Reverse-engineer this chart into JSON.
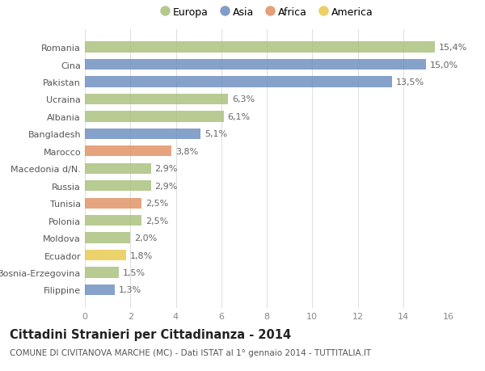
{
  "countries": [
    "Filippine",
    "Bosnia-Erzegovina",
    "Ecuador",
    "Moldova",
    "Polonia",
    "Tunisia",
    "Russia",
    "Macedonia d/N.",
    "Marocco",
    "Bangladesh",
    "Albania",
    "Ucraina",
    "Pakistan",
    "Cina",
    "Romania"
  ],
  "values": [
    1.3,
    1.5,
    1.8,
    2.0,
    2.5,
    2.5,
    2.9,
    2.9,
    3.8,
    5.1,
    6.1,
    6.3,
    13.5,
    15.0,
    15.4
  ],
  "labels": [
    "1,3%",
    "1,5%",
    "1,8%",
    "2,0%",
    "2,5%",
    "2,5%",
    "2,9%",
    "2,9%",
    "3,8%",
    "5,1%",
    "6,1%",
    "6,3%",
    "13,5%",
    "15,0%",
    "15,4%"
  ],
  "continents": [
    "Asia",
    "Europa",
    "America",
    "Europa",
    "Europa",
    "Africa",
    "Europa",
    "Europa",
    "Africa",
    "Asia",
    "Europa",
    "Europa",
    "Asia",
    "Asia",
    "Europa"
  ],
  "colors": {
    "Europa": "#a8c07a",
    "Asia": "#6b8cbf",
    "Africa": "#e09060",
    "America": "#e8c84a"
  },
  "legend_order": [
    "Europa",
    "Asia",
    "Africa",
    "America"
  ],
  "title": "Cittadini Stranieri per Cittadinanza - 2014",
  "subtitle": "COMUNE DI CIVITANOVA MARCHE (MC) - Dati ISTAT al 1° gennaio 2014 - TUTTITALIA.IT",
  "xlim": [
    0,
    16
  ],
  "xticks": [
    0,
    2,
    4,
    6,
    8,
    10,
    12,
    14,
    16
  ],
  "background_color": "#ffffff",
  "grid_color": "#e0e0e0",
  "bar_height": 0.62,
  "label_fontsize": 8.0,
  "tick_fontsize": 8.0,
  "title_fontsize": 10.5,
  "subtitle_fontsize": 7.5,
  "legend_fontsize": 9.0
}
